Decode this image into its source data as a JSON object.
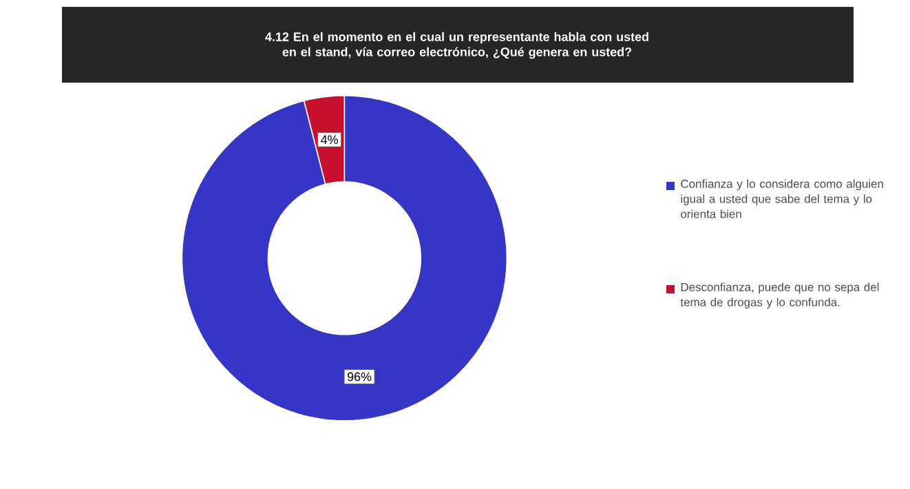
{
  "chart_data": {
    "type": "donut",
    "title": "4.12 En el momento en el cual un representante habla con usted en el stand, vía correo electrónico, ¿Qué genera en usted?",
    "categories": [
      "Confianza y lo considera como alguien igual a usted que sabe del tema y lo orienta bien",
      "Desconfianza, puede que no sepa del tema de drogas y lo confunda."
    ],
    "values": [
      96,
      4
    ],
    "value_labels": [
      "96%",
      "4%"
    ],
    "colors": [
      "#3535c8",
      "#c8102e"
    ],
    "legend": "right"
  }
}
